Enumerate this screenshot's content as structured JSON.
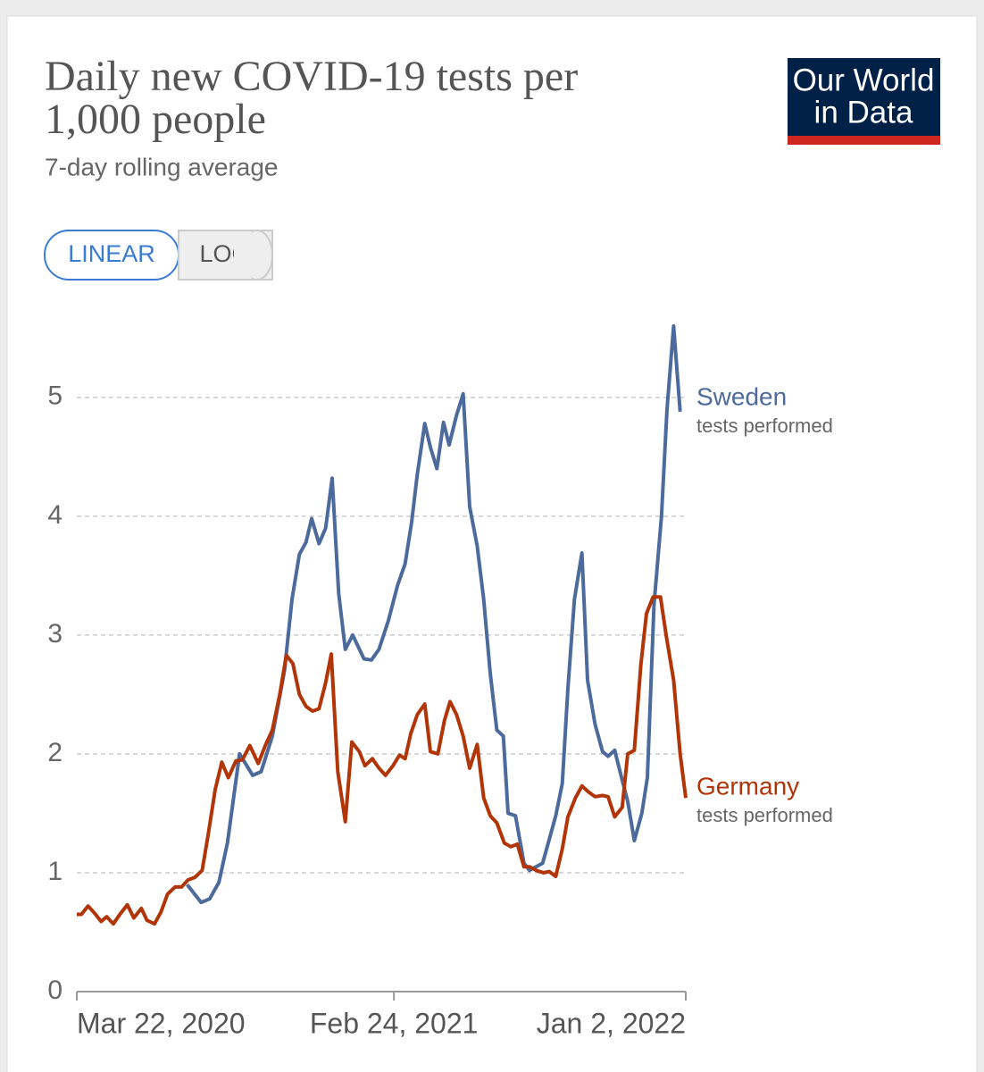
{
  "chart_data": {
    "type": "line",
    "title": [
      "Daily new COVID-19 tests per",
      "1,000 people"
    ],
    "subtitle": "7-day rolling average",
    "logo": [
      "Our World",
      "in Data"
    ],
    "scale_buttons": [
      "LINEAR",
      "LOG"
    ],
    "log_scale": false,
    "grid": true,
    "xlim": [
      "2020-03-22",
      "2022-01-02"
    ],
    "xticks": [
      {
        "value": "2020-03-22",
        "label": "Mar 22, 2020"
      },
      {
        "value": "2021-02-24",
        "label": "Feb 24, 2021"
      },
      {
        "value": "2022-01-02",
        "label": "Jan 2, 2022"
      }
    ],
    "ylim": [
      0,
      5.6
    ],
    "yticks": [
      0,
      1,
      2,
      3,
      4,
      5
    ],
    "series": [
      {
        "name": "Sweden",
        "annotation": "tests performed",
        "color": "#4c6a9c",
        "x": [
          "2020-07-18",
          "2020-08-02",
          "2020-08-11",
          "2020-08-21",
          "2020-08-30",
          "2020-09-12",
          "2020-09-26",
          "2020-10-05",
          "2020-10-17",
          "2020-10-30",
          "2020-11-07",
          "2020-11-15",
          "2020-11-22",
          "2020-11-28",
          "2020-12-06",
          "2020-12-13",
          "2020-12-20",
          "2020-12-27",
          "2021-01-03",
          "2021-01-11",
          "2021-01-23",
          "2021-01-31",
          "2021-02-08",
          "2021-02-18",
          "2021-02-28",
          "2021-03-08",
          "2021-03-15",
          "2021-03-21",
          "2021-03-29",
          "2021-04-04",
          "2021-04-11",
          "2021-04-18",
          "2021-04-24",
          "2021-05-02",
          "2021-05-09",
          "2021-05-16",
          "2021-05-24",
          "2021-05-31",
          "2021-06-07",
          "2021-06-14",
          "2021-06-21",
          "2021-06-26",
          "2021-07-04",
          "2021-07-13",
          "2021-07-19",
          "2021-07-26",
          "2021-08-02",
          "2021-08-08",
          "2021-08-16",
          "2021-08-23",
          "2021-08-29",
          "2021-09-05",
          "2021-09-13",
          "2021-09-19",
          "2021-09-27",
          "2021-10-05",
          "2021-10-11",
          "2021-10-18",
          "2021-10-26",
          "2021-11-01",
          "2021-11-08",
          "2021-11-16",
          "2021-11-22",
          "2021-11-29",
          "2021-12-07",
          "2021-12-13",
          "2021-12-20",
          "2021-12-27"
        ],
        "values": [
          0.9,
          0.75,
          0.78,
          0.92,
          1.25,
          2.0,
          1.82,
          1.85,
          2.15,
          2.7,
          3.3,
          3.68,
          3.78,
          3.98,
          3.77,
          3.9,
          4.32,
          3.35,
          2.88,
          3.0,
          2.8,
          2.79,
          2.88,
          3.12,
          3.42,
          3.6,
          3.95,
          4.35,
          4.78,
          4.58,
          4.4,
          4.79,
          4.6,
          4.85,
          5.03,
          4.08,
          3.75,
          3.3,
          2.68,
          2.2,
          2.15,
          1.5,
          1.48,
          1.08,
          1.02,
          1.05,
          1.08,
          1.25,
          1.48,
          1.75,
          2.55,
          3.3,
          3.69,
          2.62,
          2.25,
          2.02,
          1.98,
          2.03,
          1.78,
          1.6,
          1.27,
          1.5,
          1.8,
          3.25,
          4.0,
          4.9,
          5.6,
          4.88
        ]
      },
      {
        "name": "Germany",
        "annotation": "tests performed",
        "color": "#b13507",
        "x": [
          "2020-03-22",
          "2020-03-27",
          "2020-04-03",
          "2020-04-10",
          "2020-04-17",
          "2020-04-23",
          "2020-04-30",
          "2020-05-08",
          "2020-05-15",
          "2020-05-22",
          "2020-05-30",
          "2020-06-05",
          "2020-06-13",
          "2020-06-20",
          "2020-06-27",
          "2020-07-05",
          "2020-07-12",
          "2020-07-19",
          "2020-07-26",
          "2020-08-03",
          "2020-08-09",
          "2020-08-17",
          "2020-08-24",
          "2020-08-31",
          "2020-09-08",
          "2020-09-15",
          "2020-09-23",
          "2020-10-02",
          "2020-10-10",
          "2020-10-17",
          "2020-10-25",
          "2020-11-01",
          "2020-11-08",
          "2020-11-15",
          "2020-11-22",
          "2020-11-29",
          "2020-12-06",
          "2020-12-13",
          "2020-12-19",
          "2020-12-26",
          "2021-01-03",
          "2021-01-10",
          "2021-01-18",
          "2021-01-24",
          "2021-02-01",
          "2021-02-08",
          "2021-02-15",
          "2021-02-23",
          "2021-03-02",
          "2021-03-08",
          "2021-03-14",
          "2021-03-21",
          "2021-03-29",
          "2021-04-04",
          "2021-04-12",
          "2021-04-19",
          "2021-04-25",
          "2021-05-02",
          "2021-05-09",
          "2021-05-16",
          "2021-05-24",
          "2021-05-31",
          "2021-06-07",
          "2021-06-14",
          "2021-06-22",
          "2021-06-29",
          "2021-07-06",
          "2021-07-13",
          "2021-07-19",
          "2021-07-26",
          "2021-08-03",
          "2021-08-09",
          "2021-08-16",
          "2021-08-23",
          "2021-08-29",
          "2021-09-06",
          "2021-09-13",
          "2021-09-20",
          "2021-09-27",
          "2021-10-05",
          "2021-10-11",
          "2021-10-18",
          "2021-10-26",
          "2021-11-01",
          "2021-11-08",
          "2021-11-15",
          "2021-11-21",
          "2021-11-28",
          "2021-12-06",
          "2021-12-12",
          "2021-12-20",
          "2021-12-27",
          "2022-01-02"
        ],
        "values": [
          0.65,
          0.65,
          0.72,
          0.66,
          0.59,
          0.63,
          0.57,
          0.66,
          0.73,
          0.62,
          0.7,
          0.6,
          0.57,
          0.67,
          0.82,
          0.88,
          0.88,
          0.94,
          0.96,
          1.02,
          1.3,
          1.7,
          1.93,
          1.8,
          1.94,
          1.95,
          2.07,
          1.92,
          2.08,
          2.2,
          2.5,
          2.83,
          2.76,
          2.5,
          2.4,
          2.36,
          2.38,
          2.6,
          2.84,
          1.85,
          1.43,
          2.1,
          2.02,
          1.9,
          1.96,
          1.88,
          1.82,
          1.9,
          1.99,
          1.96,
          2.17,
          2.33,
          2.42,
          2.02,
          2.0,
          2.28,
          2.44,
          2.33,
          2.15,
          1.88,
          2.08,
          1.63,
          1.48,
          1.42,
          1.25,
          1.22,
          1.24,
          1.05,
          1.05,
          1.02,
          1.0,
          1.01,
          0.97,
          1.2,
          1.47,
          1.63,
          1.73,
          1.68,
          1.64,
          1.65,
          1.64,
          1.47,
          1.55,
          2.0,
          2.03,
          2.75,
          3.18,
          3.32,
          3.32,
          3.0,
          2.62,
          2.0,
          1.63
        ]
      }
    ]
  }
}
